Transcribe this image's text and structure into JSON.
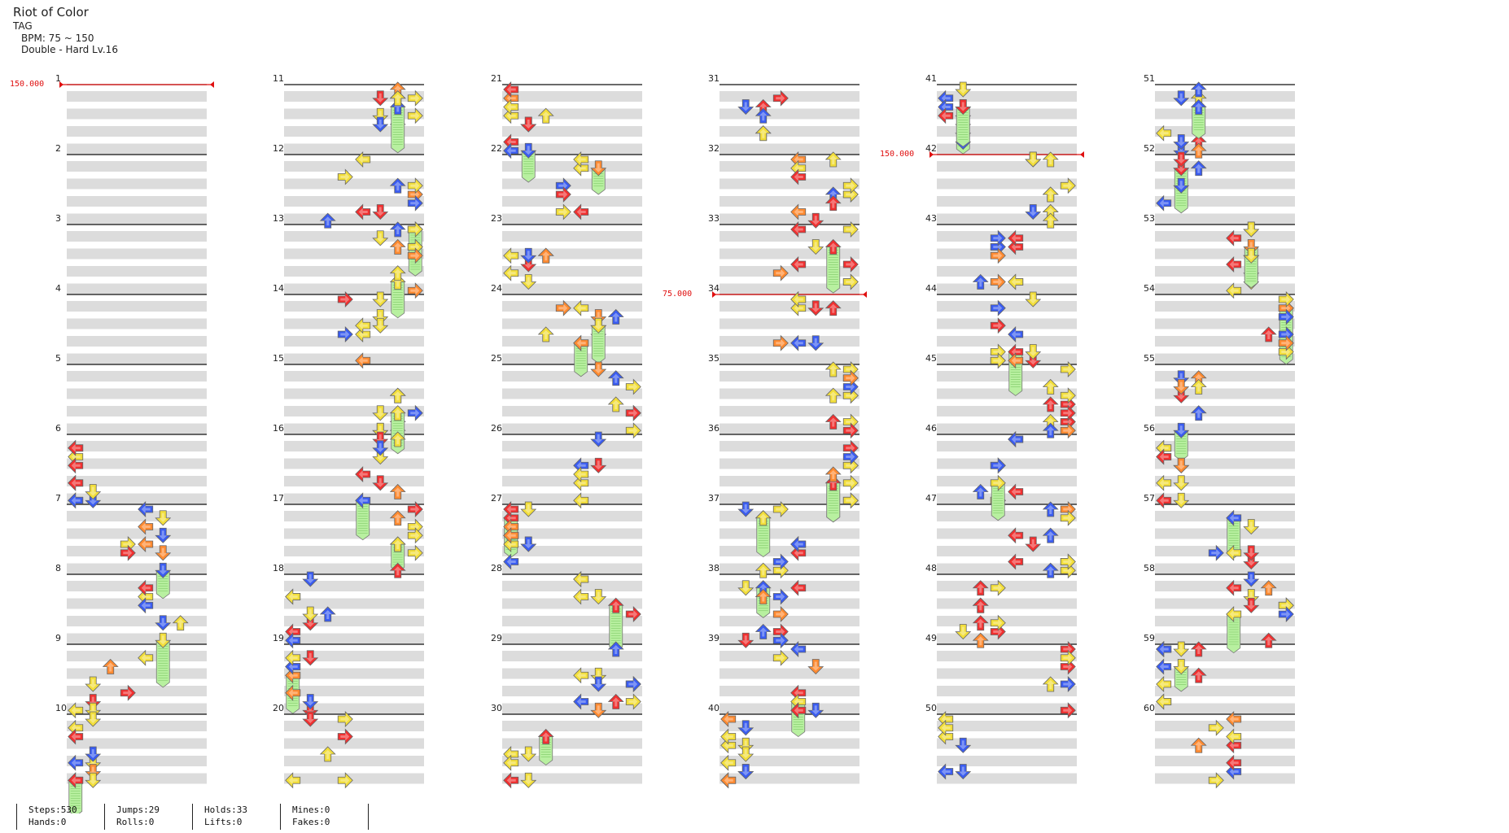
{
  "header": {
    "title": "Riot of Color",
    "artist": "TAG",
    "bpm": "BPM: 75 ~ 150",
    "difficulty": "Double - Hard Lv.16"
  },
  "colors": {
    "left": "#3a5cf0",
    "down": "#3a5cf0",
    "up": "#3a5cf0",
    "right": "#f03030",
    "quarter": "#f03030",
    "eighth": "#3a5cf0",
    "sixteenth": "#f2de3a",
    "twelfth": "#c030e0",
    "twentyfourth": "#ff8a30",
    "hold_body": "#b8f0a0",
    "bpm_marker": "#e01010",
    "band": "#dcdcdc"
  },
  "bpm_changes": [
    {
      "measure": 1,
      "value": "150.000"
    },
    {
      "measure": 34,
      "value": "75.000"
    },
    {
      "measure": 42,
      "value": "150.000"
    }
  ],
  "measures": [
    "1",
    "2",
    "3",
    "4",
    "5",
    "6",
    "7",
    "8",
    "9",
    "10",
    "11",
    "12",
    "13",
    "14",
    "15",
    "16",
    "17",
    "18",
    "19",
    "20",
    "21",
    "22",
    "23",
    "24",
    "25",
    "26",
    "27",
    "28",
    "29",
    "30",
    "31",
    "32",
    "33",
    "34",
    "35",
    "36",
    "37",
    "38",
    "39",
    "40",
    "41",
    "42",
    "43",
    "44",
    "45",
    "46",
    "47",
    "48",
    "49",
    "50",
    "51",
    "52",
    "53",
    "54",
    "55",
    "56",
    "57",
    "58",
    "59",
    "60"
  ],
  "stats": {
    "steps": "Steps:530",
    "hands": "Hands:0",
    "jumps": "Jumps:29",
    "rolls": "Rolls:0",
    "holds": "Holds:33",
    "lifts": "Lifts:0",
    "mines": "Mines:0",
    "fakes": "Fakes:0"
  }
}
